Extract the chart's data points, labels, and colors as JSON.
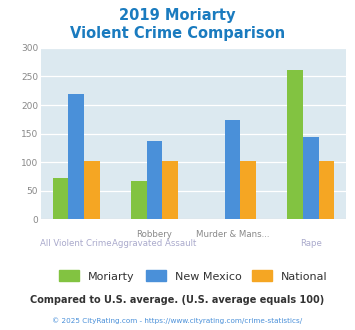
{
  "title_line1": "2019 Moriarty",
  "title_line2": "Violent Crime Comparison",
  "cat_top_labels": [
    "",
    "Robbery",
    "Murder & Mans...",
    ""
  ],
  "cat_bot_labels": [
    "All Violent Crime",
    "Aggravated Assault",
    "",
    "Rape"
  ],
  "series": {
    "Moriarty": [
      73,
      67,
      0,
      262
    ],
    "New Mexico": [
      220,
      138,
      173,
      145
    ],
    "National": [
      102,
      102,
      102,
      102
    ]
  },
  "colors": {
    "Moriarty": "#82c341",
    "New Mexico": "#4a90d9",
    "National": "#f5a623"
  },
  "ylim": [
    0,
    300
  ],
  "yticks": [
    0,
    50,
    100,
    150,
    200,
    250,
    300
  ],
  "plot_bg": "#dce9f0",
  "title_color": "#1a7bbf",
  "footer_text": "Compared to U.S. average. (U.S. average equals 100)",
  "footer_color": "#333333",
  "credit_text": "© 2025 CityRating.com - https://www.cityrating.com/crime-statistics/",
  "credit_color": "#4a90d9",
  "legend_labels": [
    "Moriarty",
    "New Mexico",
    "National"
  ]
}
